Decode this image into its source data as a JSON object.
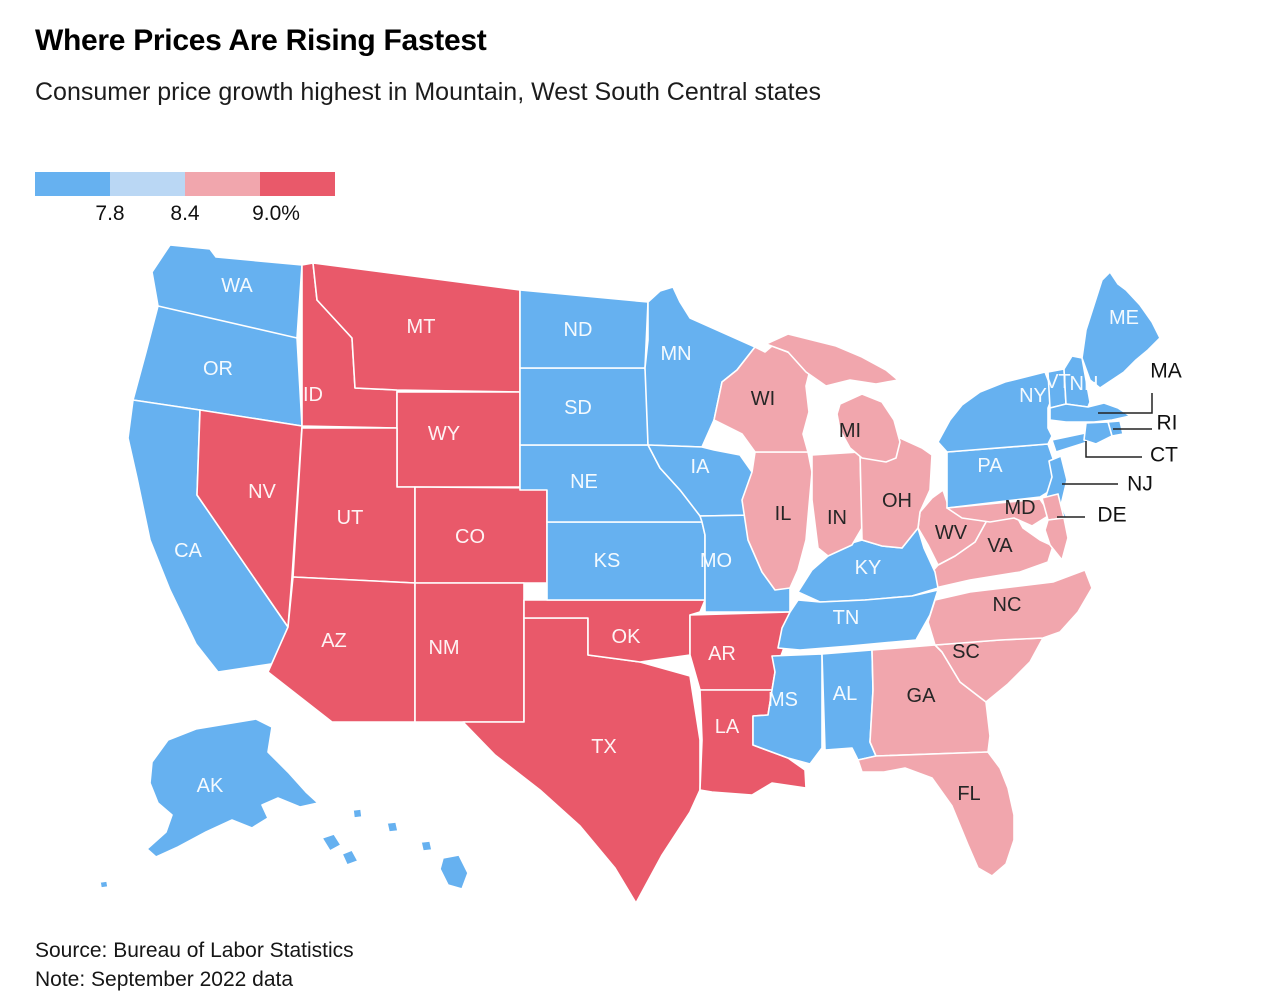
{
  "header": {
    "title": "Where Prices Are Rising Fastest",
    "subtitle": "Consumer price growth highest in Mountain, West South Central states"
  },
  "legend": {
    "ticks": [
      "7.8",
      "8.4",
      "9.0%"
    ]
  },
  "footer": {
    "source": "Source: Bureau of Labor Statistics",
    "note": "Note: September 2022 data"
  },
  "chart_data": {
    "type": "choropleth",
    "title": "Where Prices Are Rising Fastest",
    "subtitle": "Consumer price growth highest in Mountain, West South Central states",
    "metric": "Consumer price growth (CPI), September 2022 data",
    "unit": "%",
    "legend_thresholds": [
      "7.8",
      "8.4",
      "9.0%"
    ],
    "legend_position": "top-left",
    "bins": [
      {
        "id": "bin1",
        "range": "below 7.8%",
        "color": "#66B1F0"
      },
      {
        "id": "bin2",
        "range": "7.8% to 8.4%",
        "color": "#BAD7F4"
      },
      {
        "id": "bin3",
        "range": "8.4% to 9.0%",
        "color": "#F1A6AD"
      },
      {
        "id": "bin4",
        "range": "above 9.0%",
        "color": "#E9596A"
      }
    ],
    "states": [
      {
        "abbr": "WA",
        "bin": "bin1"
      },
      {
        "abbr": "OR",
        "bin": "bin1"
      },
      {
        "abbr": "CA",
        "bin": "bin1"
      },
      {
        "abbr": "AK",
        "bin": "bin1"
      },
      {
        "abbr": "HI",
        "bin": "bin1"
      },
      {
        "abbr": "NV",
        "bin": "bin4"
      },
      {
        "abbr": "ID",
        "bin": "bin4"
      },
      {
        "abbr": "MT",
        "bin": "bin4"
      },
      {
        "abbr": "WY",
        "bin": "bin4"
      },
      {
        "abbr": "UT",
        "bin": "bin4"
      },
      {
        "abbr": "CO",
        "bin": "bin4"
      },
      {
        "abbr": "AZ",
        "bin": "bin4"
      },
      {
        "abbr": "NM",
        "bin": "bin4"
      },
      {
        "abbr": "TX",
        "bin": "bin4"
      },
      {
        "abbr": "OK",
        "bin": "bin4"
      },
      {
        "abbr": "AR",
        "bin": "bin4"
      },
      {
        "abbr": "LA",
        "bin": "bin4"
      },
      {
        "abbr": "ND",
        "bin": "bin1"
      },
      {
        "abbr": "SD",
        "bin": "bin1"
      },
      {
        "abbr": "NE",
        "bin": "bin1"
      },
      {
        "abbr": "KS",
        "bin": "bin1"
      },
      {
        "abbr": "MN",
        "bin": "bin1"
      },
      {
        "abbr": "IA",
        "bin": "bin1"
      },
      {
        "abbr": "MO",
        "bin": "bin1"
      },
      {
        "abbr": "KY",
        "bin": "bin1"
      },
      {
        "abbr": "TN",
        "bin": "bin1"
      },
      {
        "abbr": "MS",
        "bin": "bin1"
      },
      {
        "abbr": "AL",
        "bin": "bin1"
      },
      {
        "abbr": "WI",
        "bin": "bin3"
      },
      {
        "abbr": "MI",
        "bin": "bin3"
      },
      {
        "abbr": "IL",
        "bin": "bin3"
      },
      {
        "abbr": "IN",
        "bin": "bin3"
      },
      {
        "abbr": "OH",
        "bin": "bin3"
      },
      {
        "abbr": "WV",
        "bin": "bin3"
      },
      {
        "abbr": "VA",
        "bin": "bin3"
      },
      {
        "abbr": "MD",
        "bin": "bin3"
      },
      {
        "abbr": "DE",
        "bin": "bin3"
      },
      {
        "abbr": "NC",
        "bin": "bin3"
      },
      {
        "abbr": "SC",
        "bin": "bin3"
      },
      {
        "abbr": "GA",
        "bin": "bin3"
      },
      {
        "abbr": "FL",
        "bin": "bin3"
      },
      {
        "abbr": "PA",
        "bin": "bin1"
      },
      {
        "abbr": "NY",
        "bin": "bin1"
      },
      {
        "abbr": "NJ",
        "bin": "bin1"
      },
      {
        "abbr": "ME",
        "bin": "bin1"
      },
      {
        "abbr": "VT",
        "bin": "bin1"
      },
      {
        "abbr": "NH",
        "bin": "bin1"
      },
      {
        "abbr": "MA",
        "bin": "bin1"
      },
      {
        "abbr": "RI",
        "bin": "bin1"
      },
      {
        "abbr": "CT",
        "bin": "bin1"
      }
    ],
    "callouts": [
      {
        "abbr": "MA",
        "label": "MA"
      },
      {
        "abbr": "RI",
        "label": "RI"
      },
      {
        "abbr": "CT",
        "label": "CT"
      },
      {
        "abbr": "NJ",
        "label": "NJ"
      },
      {
        "abbr": "DE",
        "label": "DE"
      }
    ]
  }
}
